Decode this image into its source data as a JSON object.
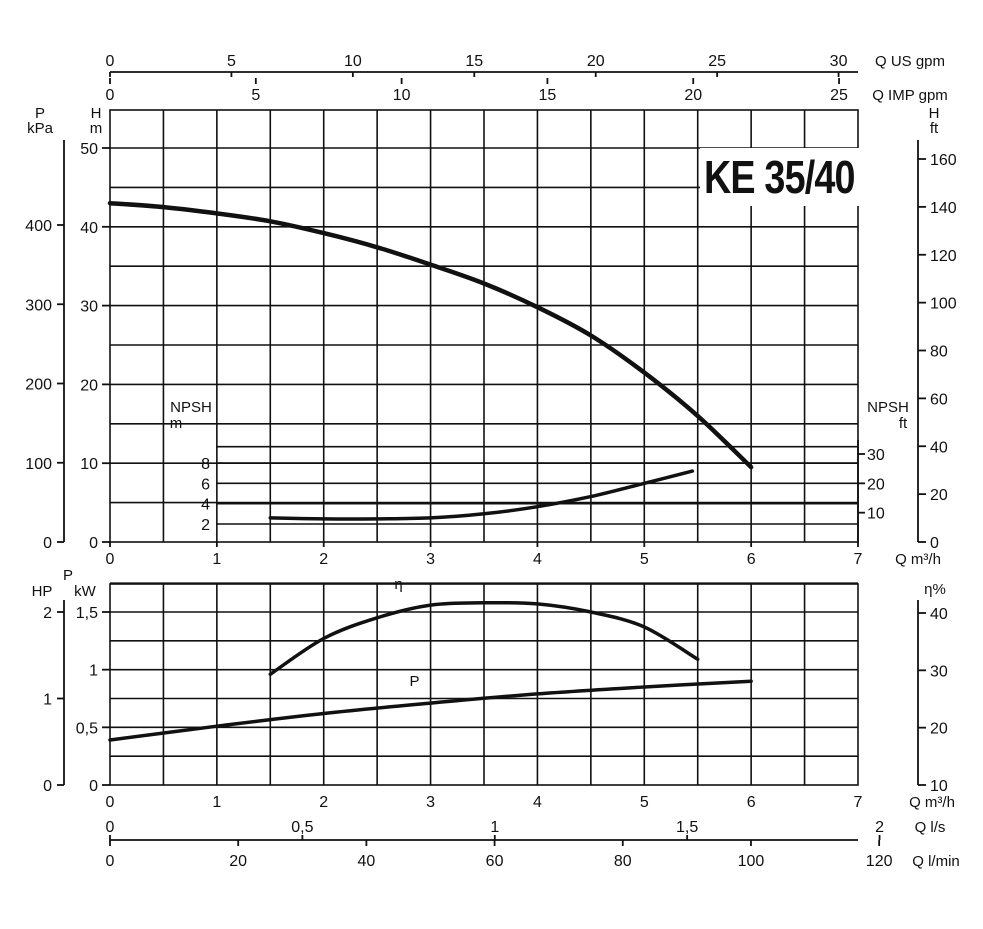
{
  "title": "KE 35/40",
  "chart_data": [
    {
      "type": "line",
      "name": "head",
      "xlabel": "Q m³/h",
      "xlim": [
        0,
        7
      ],
      "x_ticks": [
        "0",
        "1",
        "2",
        "3",
        "4",
        "5",
        "6",
        "7"
      ],
      "top_axes": [
        {
          "label": "Q US gpm",
          "ticks": [
            "0",
            "5",
            "10",
            "15",
            "20",
            "25",
            "30"
          ],
          "max": 30.8
        },
        {
          "label": "Q IMP gpm",
          "ticks": [
            "0",
            "5",
            "10",
            "15",
            "20",
            "25"
          ],
          "max": 25.65
        }
      ],
      "left_axes": [
        {
          "label_top": "H",
          "label_bottom": "m",
          "ticks": [
            "0",
            "10",
            "20",
            "30",
            "40",
            "50"
          ],
          "ylim": [
            0,
            50
          ]
        },
        {
          "label_top": "P",
          "label_bottom": "kPa",
          "ticks": [
            "0",
            "100",
            "200",
            "300",
            "400"
          ],
          "ylim": [
            0,
            490
          ]
        }
      ],
      "right_axis": {
        "label_top": "H",
        "label_bottom": "ft",
        "ticks": [
          "0",
          "20",
          "40",
          "60",
          "80",
          "100",
          "120",
          "140",
          "160"
        ],
        "ylim": [
          0,
          164
        ]
      },
      "series": [
        {
          "x": [
            0,
            0.5,
            1,
            1.5,
            2,
            2.5,
            3,
            3.5,
            4,
            4.5,
            5,
            5.5,
            6
          ],
          "values": [
            43,
            42.5,
            41.7,
            40.7,
            39.2,
            37.4,
            35.2,
            32.8,
            29.8,
            26.2,
            21.5,
            16.0,
            9.5
          ]
        }
      ]
    },
    {
      "type": "line",
      "name": "npsh",
      "left_axis": {
        "label_top": "NPSH",
        "label_bottom": "m",
        "ticks": [
          "2",
          "4",
          "6",
          "8"
        ],
        "ylim": [
          0,
          10
        ]
      },
      "right_axis": {
        "label_top": "NPSH",
        "label_bottom": "ft",
        "ticks": [
          "10",
          "20",
          "30"
        ],
        "ylim": [
          0,
          32.8
        ]
      },
      "series": [
        {
          "x": [
            1.5,
            2,
            2.5,
            3,
            3.5,
            4,
            4.5,
            5,
            5.45
          ],
          "values": [
            2.6,
            2.5,
            2.5,
            2.6,
            3.0,
            3.7,
            4.7,
            6.0,
            7.2
          ]
        }
      ]
    },
    {
      "type": "line",
      "name": "power-efficiency",
      "xlabel": "Q m³/h",
      "xlim": [
        0,
        7
      ],
      "x_ticks": [
        "0",
        "1",
        "2",
        "3",
        "4",
        "5",
        "6",
        "7"
      ],
      "left_axes": [
        {
          "label_top": "P",
          "label_bottom": "kW",
          "ticks": [
            "0",
            "0,5",
            "1",
            "1,5"
          ],
          "ylim": [
            0,
            1.75
          ]
        },
        {
          "label": "HP",
          "ticks": [
            "0",
            "1",
            "2"
          ],
          "ylim": [
            0,
            2.35
          ]
        }
      ],
      "right_axis": {
        "label": "η%",
        "ticks": [
          "10",
          "20",
          "30",
          "40"
        ],
        "ylim": [
          10,
          45
        ]
      },
      "bottom_axes": [
        {
          "label": "Q l/s",
          "ticks": [
            "0",
            "0,5",
            "1",
            "1,5",
            "2"
          ],
          "max": 1.944
        },
        {
          "label": "Q l/min",
          "ticks": [
            "0",
            "20",
            "40",
            "60",
            "80",
            "100",
            "120"
          ],
          "max": 116.7
        }
      ],
      "series": [
        {
          "name": "η",
          "x": [
            1.5,
            2,
            2.5,
            3,
            3.5,
            4,
            4.5,
            5,
            5.5
          ],
          "values": [
            0.96,
            1.27,
            1.45,
            1.56,
            1.58,
            1.57,
            1.5,
            1.37,
            1.09
          ]
        },
        {
          "name": "P",
          "x": [
            0,
            1,
            2,
            3,
            4,
            5,
            6
          ],
          "values": [
            0.39,
            0.51,
            0.62,
            0.71,
            0.79,
            0.85,
            0.9
          ]
        }
      ]
    }
  ]
}
